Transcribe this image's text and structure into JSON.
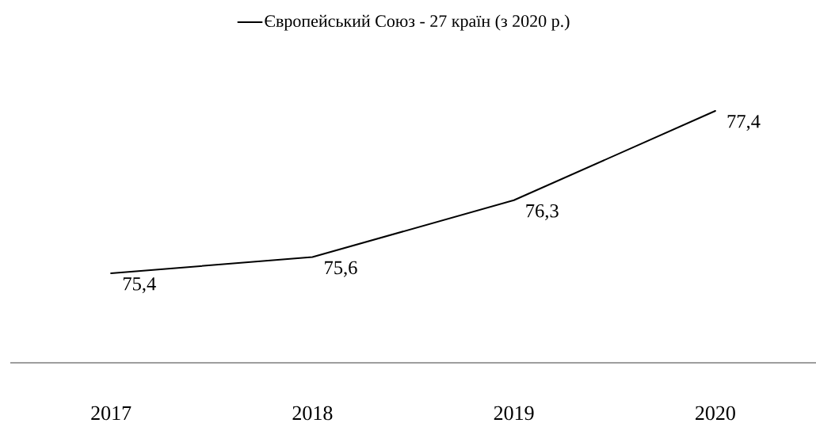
{
  "chart_data": {
    "type": "line",
    "categories": [
      "2017",
      "2018",
      "2019",
      "2020"
    ],
    "series": [
      {
        "name": "Європейський Союз - 27 країн (з 2020 р.)",
        "color": "#000000",
        "values": [
          75.4,
          75.6,
          76.3,
          77.4
        ],
        "value_labels": [
          "75,4",
          "75,6",
          "76,3",
          "77,4"
        ]
      }
    ],
    "legend": "top"
  }
}
